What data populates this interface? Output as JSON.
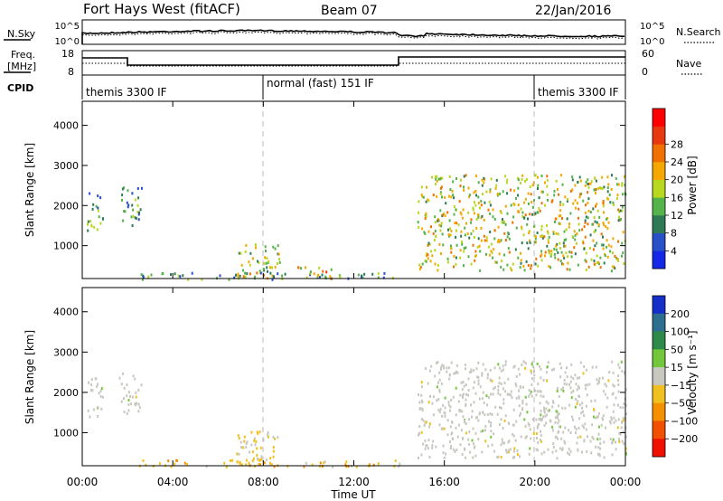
{
  "header": {
    "station": "Fort Hays West (fitACF)",
    "beam": "Beam 07",
    "date": "22/Jan/2016"
  },
  "noise_panel": {
    "left_label": "N.Sky",
    "left_ticks": [
      "10^5",
      "10^0"
    ],
    "right_ticks": [
      "10^5",
      "10^0"
    ],
    "right_label": "N.Search"
  },
  "freq_panel": {
    "label_line1": "Freq.",
    "label_line2": "[MHz]",
    "left_ticks": [
      "18",
      "8"
    ],
    "right_ticks": [
      "60",
      "0"
    ],
    "right_label": "Nave"
  },
  "cpid": {
    "label": "CPID",
    "segments": [
      {
        "name": "themis 3300 IF",
        "start_hour": 0,
        "end_hour": 8
      },
      {
        "name": "normal (fast) 151 IF",
        "start_hour": 8,
        "end_hour": 20
      },
      {
        "name": "themis 3300 IF",
        "start_hour": 20,
        "end_hour": 24
      }
    ]
  },
  "chart_data": [
    {
      "type": "heatmap",
      "name": "power",
      "ylabel": "Slant Range [km]",
      "xlim": [
        0,
        24
      ],
      "ylim": [
        180,
        4600
      ],
      "yticks": [
        1000,
        2000,
        3000,
        4000
      ],
      "colorbar": {
        "label": "Power [dB]",
        "ticks": [
          "4",
          "8",
          "12",
          "16",
          "20",
          "24",
          "28"
        ],
        "colors": [
          "#1428e6",
          "#2850c8",
          "#2e7a56",
          "#55b34c",
          "#b8d820",
          "#f5a800",
          "#f07000",
          "#e83810",
          "#ff0000"
        ]
      },
      "regions": [
        {
          "t0": 0.2,
          "t1": 0.9,
          "r0": 1400,
          "r1": 2400,
          "mean": 12
        },
        {
          "t0": 1.6,
          "t1": 2.6,
          "r0": 1500,
          "r1": 2500,
          "mean": 10
        },
        {
          "t0": 6.8,
          "t1": 8.7,
          "r0": 200,
          "r1": 1100,
          "mean": 16
        },
        {
          "t0": 2.5,
          "t1": 14,
          "r0": 180,
          "r1": 350,
          "mean": 10
        },
        {
          "t0": 9.5,
          "t1": 11,
          "r0": 180,
          "r1": 500,
          "mean": 20
        },
        {
          "t0": 14.8,
          "t1": 24,
          "r0": 400,
          "r1": 2800,
          "mean": 16
        }
      ]
    },
    {
      "type": "heatmap",
      "name": "velocity",
      "xlabel": "Time UT",
      "ylabel": "Slant Range [km]",
      "xlim": [
        0,
        24
      ],
      "xticks": [
        "00:00",
        "04:00",
        "08:00",
        "12:00",
        "16:00",
        "20:00",
        "00:00"
      ],
      "ylim": [
        180,
        4600
      ],
      "yticks": [
        1000,
        2000,
        3000,
        4000
      ],
      "colorbar": {
        "label": "Velocity [m s⁻¹]",
        "ticks": [
          "200",
          "100",
          "50",
          "15",
          "−15",
          "−50",
          "−100",
          "−200"
        ],
        "colors": [
          "#1430c8",
          "#2e6e8e",
          "#2e8a4a",
          "#72c83a",
          "#c8c8c0",
          "#f0c020",
          "#f59000",
          "#f05000",
          "#f01000"
        ]
      },
      "regions": [
        {
          "t0": 0.2,
          "t1": 0.9,
          "r0": 1400,
          "r1": 2400,
          "mean": 0
        },
        {
          "t0": 1.6,
          "t1": 2.6,
          "r0": 1500,
          "r1": 2500,
          "mean": 0
        },
        {
          "t0": 6.8,
          "t1": 8.7,
          "r0": 200,
          "r1": 1100,
          "mean": -20
        },
        {
          "t0": 2.5,
          "t1": 14,
          "r0": 180,
          "r1": 350,
          "mean": -40
        },
        {
          "t0": 14.8,
          "t1": 24,
          "r0": 400,
          "r1": 2800,
          "mean": 0
        }
      ]
    }
  ]
}
